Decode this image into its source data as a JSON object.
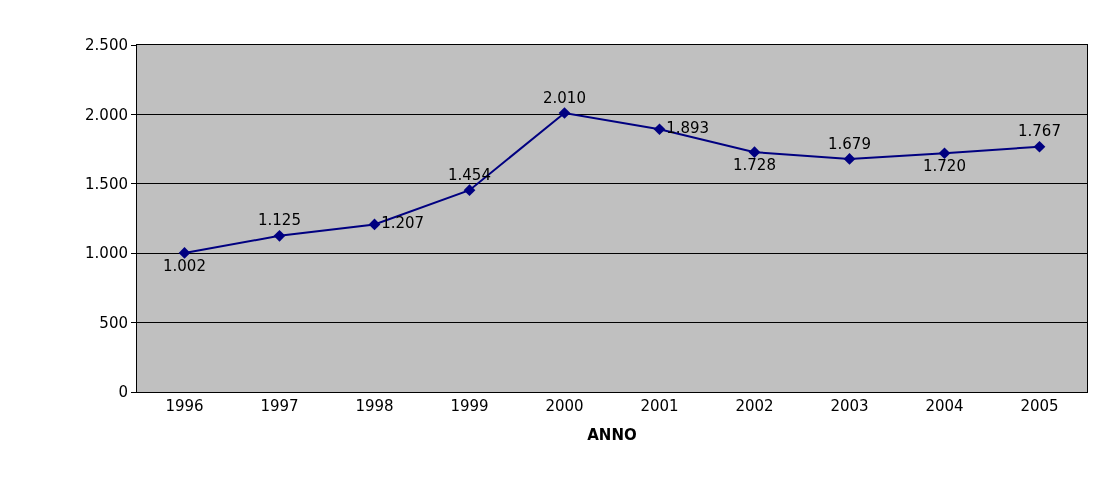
{
  "chart_data": {
    "type": "line",
    "xlabel": "ANNO",
    "categories": [
      "1996",
      "1997",
      "1998",
      "1999",
      "2000",
      "2001",
      "2002",
      "2003",
      "2004",
      "2005"
    ],
    "series": [
      {
        "color": "#000080",
        "values": [
          1002,
          1125,
          1207,
          1454,
          2010,
          1893,
          1728,
          1679,
          1720,
          1767
        ],
        "value_labels": [
          "1.002",
          "1.125",
          "1.207",
          "1.454",
          "2.010",
          "1.893",
          "1.728",
          "1.679",
          "1.720",
          "1.767"
        ]
      }
    ],
    "ylim": [
      0,
      2500
    ],
    "yticks": [
      {
        "value": 0,
        "label": "0"
      },
      {
        "value": 500,
        "label": "500"
      },
      {
        "value": 1000,
        "label": "1.000"
      },
      {
        "value": 1500,
        "label": "1.500"
      },
      {
        "value": 2000,
        "label": "2.000"
      },
      {
        "value": 2500,
        "label": "2.500"
      }
    ],
    "grid": "y",
    "legend": false,
    "marker": "diamond",
    "line_style": "solid"
  }
}
